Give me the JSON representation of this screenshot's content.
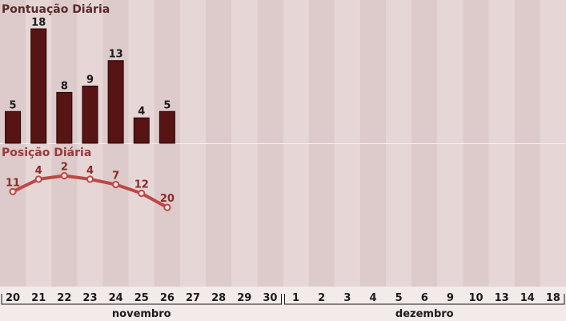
{
  "colors": {
    "col_a": "#ddcaca",
    "col_b": "#e6d6d6",
    "bar": "#561414",
    "line": "#c04646",
    "line_label": "#8a2a2a",
    "top_title": "#5a2a2a",
    "bottom_title": "#9a3a3a",
    "axis_band": "#f3eaea"
  },
  "chart_data": [
    {
      "type": "bar",
      "title": "Pontuação Diária",
      "categories": [
        "20",
        "21",
        "22",
        "23",
        "24",
        "25",
        "26"
      ],
      "values": [
        5,
        18,
        8,
        9,
        13,
        4,
        5
      ],
      "ylim": [
        0,
        18
      ]
    },
    {
      "type": "line",
      "title": "Posição Diária",
      "categories": [
        "20",
        "21",
        "22",
        "23",
        "24",
        "25",
        "26"
      ],
      "values": [
        11,
        4,
        2,
        4,
        7,
        12,
        20
      ],
      "inverted_axis": true
    }
  ],
  "x_axis": {
    "ticks": [
      "20",
      "21",
      "22",
      "23",
      "24",
      "25",
      "26",
      "27",
      "28",
      "29",
      "30",
      "1",
      "2",
      "3",
      "4",
      "5",
      "6",
      "9",
      "10",
      "13",
      "14",
      "18"
    ],
    "months": [
      {
        "label": "novembro",
        "from": 0,
        "to": 10
      },
      {
        "label": "dezembro",
        "from": 11,
        "to": 21
      }
    ]
  }
}
